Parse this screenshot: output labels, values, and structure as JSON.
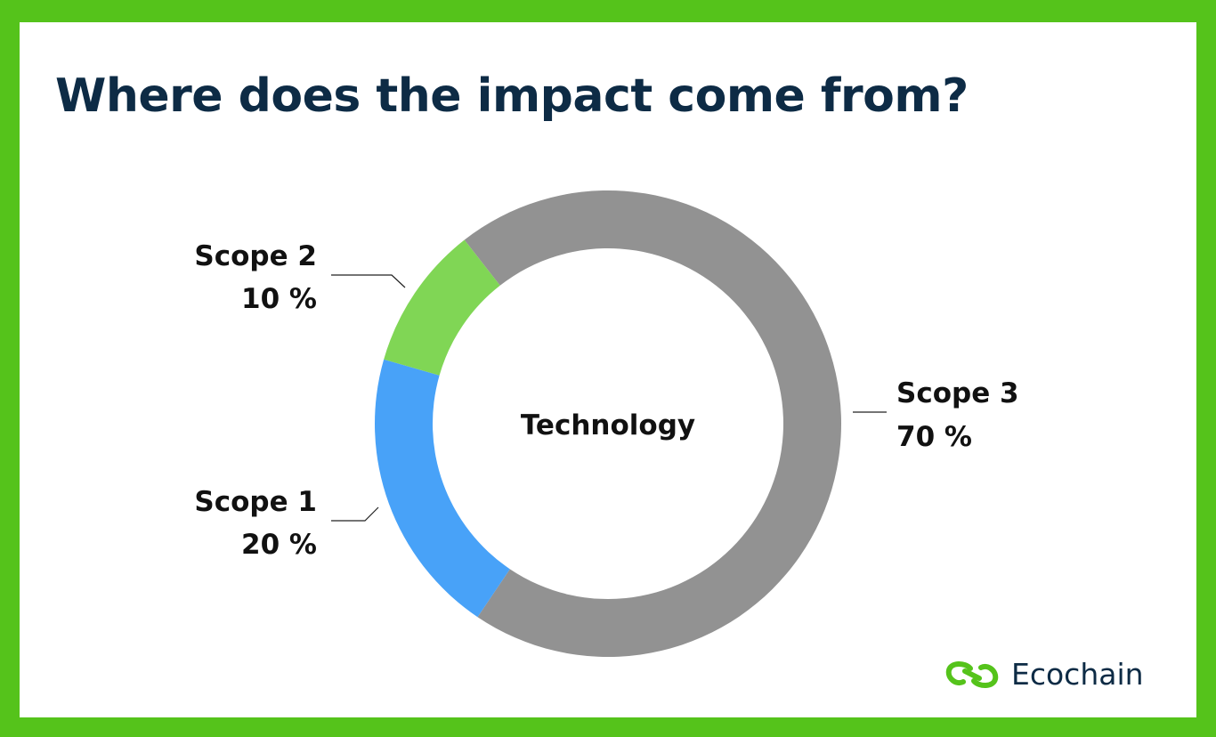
{
  "title": "Where does the impact come from?",
  "brand": {
    "name": "Ecochain",
    "logo_icon": "infinity-chain-icon",
    "color": "#55c31b",
    "text_color": "#0d2b45"
  },
  "chart_data": {
    "type": "pie",
    "donut": true,
    "center_label": "Technology",
    "slices": [
      {
        "name": "Scope 3",
        "value": 70,
        "label": "70 %",
        "color": "#929292"
      },
      {
        "name": "Scope 1",
        "value": 20,
        "label": "20 %",
        "color": "#48a2f8"
      },
      {
        "name": "Scope 2",
        "value": 10,
        "label": "10 %",
        "color": "#80d655"
      }
    ]
  }
}
